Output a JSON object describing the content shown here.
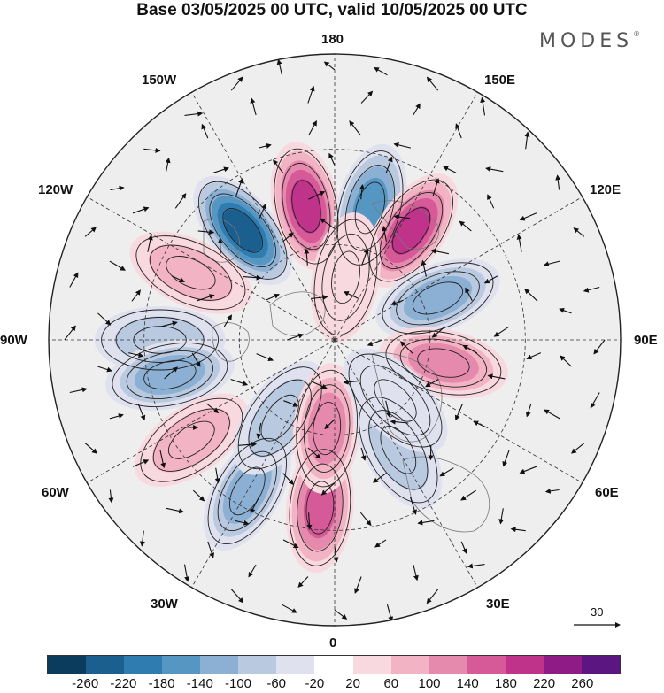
{
  "header": {
    "title": "Base 03/05/2025 00 UTC, valid 10/05/2025 00 UTC",
    "brand": "MODES",
    "brand_mark": "®"
  },
  "longitude_labels": {
    "n180": "180",
    "e150": "150E",
    "e120": "120E",
    "e90": "90E",
    "e60": "60E",
    "e30": "30E",
    "s0": "0",
    "w30": "30W",
    "w60": "60W",
    "w90": "90W",
    "w120": "120W",
    "w150": "150W"
  },
  "wind_scale": {
    "label": "30"
  },
  "colorbar": {
    "ticks": [
      "-260",
      "-220",
      "-180",
      "-140",
      "-100",
      "-60",
      "-20",
      "20",
      "60",
      "100",
      "140",
      "180",
      "220",
      "260"
    ],
    "colors": [
      "#0b3c5d",
      "#1b5f8e",
      "#2f7cb0",
      "#5696c3",
      "#8cb0d3",
      "#b9c9e0",
      "#dfe1ef",
      "#ffffff",
      "#f8d9df",
      "#f2b4c4",
      "#e68aad",
      "#d75a98",
      "#c0338a",
      "#8e1b86",
      "#5b1681"
    ]
  },
  "map": {
    "anomaly_centers": [
      {
        "lon": -140,
        "lat": 45,
        "value": -260
      },
      {
        "lon": -168,
        "lat": 47,
        "value": 230
      },
      {
        "lon": 165,
        "lat": 47,
        "value": -190
      },
      {
        "lon": 145,
        "lat": 48,
        "value": 220
      },
      {
        "lon": 112,
        "lat": 55,
        "value": -150
      },
      {
        "lon": 78,
        "lat": 55,
        "value": 120
      },
      {
        "lon": -115,
        "lat": 40,
        "value": 110
      },
      {
        "lon": -90,
        "lat": 35,
        "value": -100
      },
      {
        "lon": -78,
        "lat": 37,
        "value": -140
      },
      {
        "lon": -55,
        "lat": 35,
        "value": 110
      },
      {
        "lon": -30,
        "lat": 35,
        "value": -140
      },
      {
        "lon": -35,
        "lat": 60,
        "value": -80
      },
      {
        "lon": -5,
        "lat": 37,
        "value": 170
      },
      {
        "lon": -5,
        "lat": 62,
        "value": 140
      },
      {
        "lon": 30,
        "lat": 50,
        "value": -80
      },
      {
        "lon": 45,
        "lat": 63,
        "value": -60
      },
      {
        "lon": 170,
        "lat": 70,
        "value": 60
      }
    ]
  }
}
